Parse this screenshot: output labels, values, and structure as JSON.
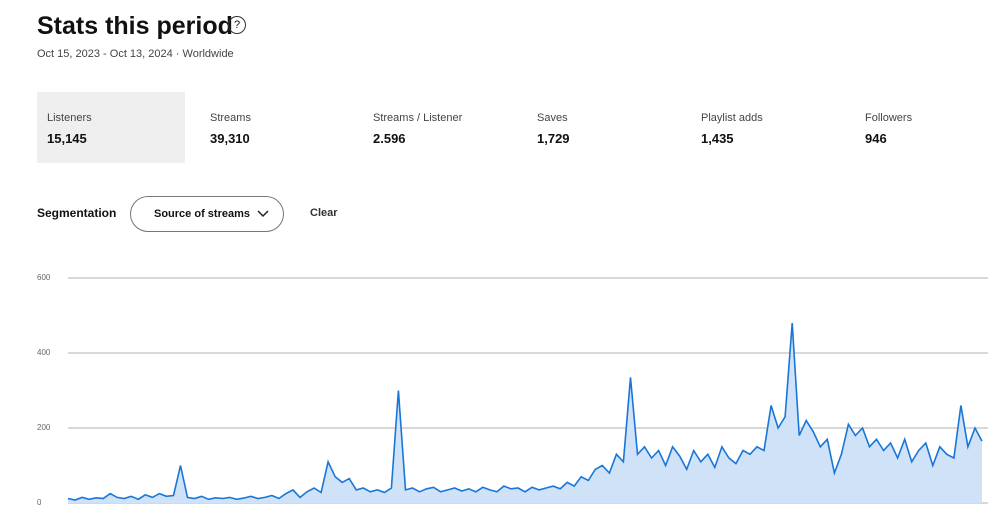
{
  "header": {
    "title": "Stats this period",
    "help_icon": "?",
    "subtitle": "Oct 15, 2023 - Oct 13, 2024 · Worldwide"
  },
  "stats": [
    {
      "label": "Listeners",
      "value": "15,145"
    },
    {
      "label": "Streams",
      "value": "39,310"
    },
    {
      "label": "Streams / Listener",
      "value": "2.596"
    },
    {
      "label": "Saves",
      "value": "1,729"
    },
    {
      "label": "Playlist adds",
      "value": "1,435"
    },
    {
      "label": "Followers",
      "value": "946"
    }
  ],
  "segmentation": {
    "label": "Segmentation",
    "dropdown": "Source of streams",
    "clear": "Clear"
  },
  "chart_data": {
    "type": "area",
    "ylim": [
      0,
      600
    ],
    "yticks": [
      0,
      200,
      400,
      600
    ],
    "grid": true,
    "series": [
      {
        "color": "#1976d9",
        "fill": "#cfe2f7",
        "values": [
          12,
          8,
          15,
          10,
          14,
          12,
          25,
          15,
          12,
          18,
          10,
          22,
          15,
          25,
          18,
          20,
          100,
          15,
          12,
          18,
          10,
          14,
          12,
          15,
          10,
          13,
          18,
          12,
          15,
          20,
          12,
          25,
          35,
          15,
          30,
          40,
          28,
          110,
          70,
          55,
          65,
          35,
          40,
          30,
          35,
          28,
          40,
          300,
          35,
          40,
          30,
          38,
          42,
          30,
          35,
          40,
          32,
          38,
          30,
          42,
          35,
          30,
          45,
          38,
          40,
          30,
          42,
          35,
          40,
          45,
          38,
          55,
          45,
          70,
          60,
          90,
          100,
          80,
          130,
          110,
          335,
          130,
          150,
          120,
          140,
          100,
          150,
          125,
          90,
          140,
          110,
          130,
          95,
          150,
          120,
          105,
          140,
          130,
          150,
          140,
          260,
          200,
          230,
          480,
          180,
          220,
          190,
          150,
          170,
          80,
          130,
          210,
          180,
          200,
          150,
          170,
          140,
          160,
          120,
          170,
          110,
          140,
          160,
          100,
          150,
          130,
          120,
          260,
          150,
          200,
          165
        ]
      }
    ]
  }
}
